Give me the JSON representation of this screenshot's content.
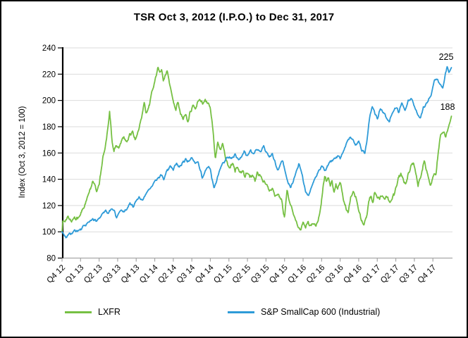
{
  "colors": {
    "lxfr_green": "#76C043",
    "sp600_blue": "#2E9BD8",
    "grid": "#DBDBDB",
    "axis_y": "#000000",
    "axis_x": "#A6A6A6",
    "text": "#000000"
  },
  "legend": {
    "items": [
      {
        "label": "LXFR",
        "color": "#76C043"
      },
      {
        "label": "S&P SmallCap 600 (Industrial)",
        "color": "#2E9BD8"
      }
    ]
  },
  "chart_data": {
    "type": "line",
    "title": "TSR Oct 3, 2012 (I.P.O.) to Dec 31, 2017",
    "xlabel": "",
    "ylabel": "Index (Oct 3, 2012 = 100)",
    "ylim": [
      80,
      240
    ],
    "yticks": [
      80,
      100,
      120,
      140,
      160,
      180,
      200,
      220,
      240
    ],
    "grid": "horizontal",
    "legend_position": "bottom",
    "x_unit": "months since Oct 3, 2012 (0 = IPO Oct 3 2012, 63 = Dec 31 2017)",
    "x_range": [
      0,
      63
    ],
    "xtick_labels": [
      "Q4 12",
      "Q1 13",
      "Q2 13",
      "Q3 13",
      "Q4 13",
      "Q1 14",
      "Q2 14",
      "Q3 14",
      "Q4 14",
      "Q1 15",
      "Q2 15",
      "Q3 15",
      "Q4 15",
      "Q1 16",
      "Q2 16",
      "Q3 16",
      "Q4 16",
      "Q1 17",
      "Q2 17",
      "Q3 17",
      "Q4 17"
    ],
    "end_labels": [
      {
        "series": "S&P SmallCap 600 (Industrial)",
        "value": 225
      },
      {
        "series": "LXFR",
        "value": 188
      }
    ],
    "series": [
      {
        "name": "LXFR",
        "color": "#76C043",
        "points": [
          [
            0,
            100
          ],
          [
            0.15,
            109
          ],
          [
            0.5,
            107
          ],
          [
            1,
            111
          ],
          [
            1.5,
            108
          ],
          [
            2,
            112
          ],
          [
            2.5,
            110
          ],
          [
            3,
            113
          ],
          [
            3.5,
            118
          ],
          [
            4,
            124
          ],
          [
            4.5,
            131
          ],
          [
            5,
            140
          ],
          [
            5.6,
            130
          ],
          [
            6,
            137
          ],
          [
            6.3,
            146
          ],
          [
            6.6,
            156
          ],
          [
            6.9,
            163
          ],
          [
            7.2,
            171
          ],
          [
            7.45,
            180
          ],
          [
            7.7,
            192
          ],
          [
            7.9,
            182
          ],
          [
            8.1,
            170
          ],
          [
            8.4,
            161
          ],
          [
            8.8,
            167
          ],
          [
            9.2,
            163
          ],
          [
            9.6,
            169
          ],
          [
            10,
            172
          ],
          [
            10.5,
            168
          ],
          [
            11,
            174
          ],
          [
            11.4,
            177
          ],
          [
            11.8,
            171
          ],
          [
            12.2,
            174
          ],
          [
            12.6,
            181
          ],
          [
            13,
            190
          ],
          [
            13.3,
            198
          ],
          [
            13.6,
            189
          ],
          [
            14,
            194
          ],
          [
            14.4,
            203
          ],
          [
            14.8,
            210
          ],
          [
            15.2,
            219
          ],
          [
            15.5,
            226
          ],
          [
            15.8,
            221
          ],
          [
            16.1,
            224
          ],
          [
            16.4,
            214
          ],
          [
            16.8,
            220
          ],
          [
            17,
            223
          ],
          [
            17.3,
            215
          ],
          [
            17.6,
            207
          ],
          [
            18,
            200
          ],
          [
            18.4,
            193
          ],
          [
            18.8,
            199
          ],
          [
            19.2,
            189
          ],
          [
            19.6,
            186
          ],
          [
            20,
            190
          ],
          [
            20.4,
            184
          ],
          [
            20.8,
            192
          ],
          [
            21.2,
            197
          ],
          [
            21.6,
            194
          ],
          [
            22,
            199
          ],
          [
            22.4,
            201
          ],
          [
            22.8,
            197
          ],
          [
            23.2,
            200
          ],
          [
            23.6,
            198
          ],
          [
            24,
            194
          ],
          [
            24.4,
            178
          ],
          [
            24.8,
            156
          ],
          [
            25.2,
            168
          ],
          [
            25.6,
            162
          ],
          [
            26,
            167
          ],
          [
            26.4,
            158
          ],
          [
            26.8,
            152
          ],
          [
            27.2,
            149
          ],
          [
            27.6,
            153
          ],
          [
            28,
            147
          ],
          [
            28.4,
            150
          ],
          [
            28.8,
            144
          ],
          [
            29.2,
            147
          ],
          [
            29.6,
            142
          ],
          [
            30,
            145
          ],
          [
            30.4,
            141
          ],
          [
            30.8,
            144
          ],
          [
            31.2,
            139
          ],
          [
            31.6,
            146
          ],
          [
            32,
            142
          ],
          [
            32.5,
            139
          ],
          [
            33,
            136
          ],
          [
            33.5,
            131
          ],
          [
            34,
            134
          ],
          [
            34.5,
            127
          ],
          [
            35,
            130
          ],
          [
            35.5,
            124
          ],
          [
            36,
            111
          ],
          [
            36.4,
            131
          ],
          [
            36.8,
            124
          ],
          [
            37.2,
            117
          ],
          [
            37.6,
            110
          ],
          [
            38,
            106
          ],
          [
            38.5,
            101
          ],
          [
            39,
            107
          ],
          [
            39.4,
            103
          ],
          [
            39.8,
            108
          ],
          [
            40.2,
            104
          ],
          [
            40.6,
            107
          ],
          [
            41,
            104
          ],
          [
            41.4,
            108
          ],
          [
            41.8,
            116
          ],
          [
            42.2,
            132
          ],
          [
            42.5,
            144
          ],
          [
            42.8,
            137
          ],
          [
            43.1,
            142
          ],
          [
            43.4,
            134
          ],
          [
            43.7,
            139
          ],
          [
            44,
            131
          ],
          [
            44.3,
            137
          ],
          [
            44.6,
            132
          ],
          [
            45,
            138
          ],
          [
            45.4,
            128
          ],
          [
            46,
            117
          ],
          [
            46.3,
            114
          ],
          [
            46.7,
            126
          ],
          [
            47.1,
            131
          ],
          [
            47.5,
            126
          ],
          [
            48,
            117
          ],
          [
            48.4,
            108
          ],
          [
            48.8,
            106
          ],
          [
            49.2,
            110
          ],
          [
            49.6,
            122
          ],
          [
            50,
            128
          ],
          [
            50.3,
            121
          ],
          [
            50.6,
            131
          ],
          [
            51,
            127
          ],
          [
            51.4,
            125
          ],
          [
            51.8,
            128
          ],
          [
            52.2,
            124
          ],
          [
            52.6,
            127
          ],
          [
            53,
            124
          ],
          [
            53.4,
            126
          ],
          [
            54,
            133
          ],
          [
            54.5,
            142
          ],
          [
            54.8,
            145
          ],
          [
            55.2,
            139
          ],
          [
            55.6,
            136
          ],
          [
            56,
            143
          ],
          [
            56.4,
            149
          ],
          [
            56.9,
            153
          ],
          [
            57.3,
            143
          ],
          [
            57.6,
            136
          ],
          [
            58,
            141
          ],
          [
            58.3,
            147
          ],
          [
            58.6,
            154
          ],
          [
            59,
            147
          ],
          [
            59.3,
            142
          ],
          [
            59.6,
            134
          ],
          [
            59.9,
            140
          ],
          [
            60.2,
            146
          ],
          [
            60.5,
            143
          ],
          [
            60.9,
            162
          ],
          [
            61.2,
            172
          ],
          [
            61.5,
            174
          ],
          [
            61.8,
            176
          ],
          [
            62.1,
            173
          ],
          [
            62.4,
            177
          ],
          [
            62.7,
            182
          ],
          [
            63,
            188
          ]
        ]
      },
      {
        "name": "S&P SmallCap 600 (Industrial)",
        "color": "#2E9BD8",
        "points": [
          [
            0,
            100
          ],
          [
            0.4,
            97
          ],
          [
            0.8,
            96
          ],
          [
            1.2,
            99
          ],
          [
            1.6,
            98
          ],
          [
            2,
            101
          ],
          [
            2.5,
            100
          ],
          [
            3,
            102
          ],
          [
            3.5,
            104
          ],
          [
            4,
            106
          ],
          [
            4.5,
            108
          ],
          [
            5,
            110
          ],
          [
            5.5,
            108
          ],
          [
            6,
            111
          ],
          [
            6.5,
            113
          ],
          [
            7,
            116
          ],
          [
            7.5,
            114
          ],
          [
            8,
            118
          ],
          [
            8.4,
            116
          ],
          [
            8.8,
            110
          ],
          [
            9.2,
            114
          ],
          [
            9.6,
            117
          ],
          [
            10,
            115
          ],
          [
            10.5,
            118
          ],
          [
            11,
            121
          ],
          [
            11.5,
            119
          ],
          [
            12,
            123
          ],
          [
            12.5,
            126
          ],
          [
            13,
            124
          ],
          [
            13.5,
            128
          ],
          [
            14,
            131
          ],
          [
            14.5,
            134
          ],
          [
            15,
            138
          ],
          [
            15.5,
            141
          ],
          [
            16,
            143
          ],
          [
            16.5,
            140
          ],
          [
            17,
            147
          ],
          [
            17.5,
            150
          ],
          [
            18,
            148
          ],
          [
            18.5,
            152
          ],
          [
            19,
            149
          ],
          [
            19.5,
            153
          ],
          [
            20,
            155
          ],
          [
            20.5,
            153
          ],
          [
            21,
            156
          ],
          [
            21.5,
            152
          ],
          [
            22,
            154
          ],
          [
            22.7,
            141
          ],
          [
            23.2,
            147
          ],
          [
            23.6,
            150
          ],
          [
            24,
            147
          ],
          [
            24.6,
            133
          ],
          [
            25,
            138
          ],
          [
            25.5,
            147
          ],
          [
            26,
            152
          ],
          [
            26.5,
            155
          ],
          [
            27,
            158
          ],
          [
            27.5,
            156
          ],
          [
            28,
            159
          ],
          [
            28.5,
            155
          ],
          [
            29,
            158
          ],
          [
            29.5,
            161
          ],
          [
            30,
            157
          ],
          [
            30.5,
            162
          ],
          [
            31,
            159
          ],
          [
            31.5,
            163
          ],
          [
            32,
            160
          ],
          [
            32.6,
            165
          ],
          [
            33,
            161
          ],
          [
            33.5,
            157
          ],
          [
            34,
            160
          ],
          [
            34.5,
            152
          ],
          [
            35,
            147
          ],
          [
            35.6,
            155
          ],
          [
            36,
            148
          ],
          [
            36.5,
            138
          ],
          [
            37,
            133
          ],
          [
            37.5,
            140
          ],
          [
            38,
            147
          ],
          [
            38.3,
            152
          ],
          [
            38.7,
            146
          ],
          [
            39.4,
            131
          ],
          [
            39.9,
            128
          ],
          [
            40.4,
            135
          ],
          [
            41,
            141
          ],
          [
            41.5,
            146
          ],
          [
            42,
            150
          ],
          [
            42.6,
            147
          ],
          [
            43.3,
            153
          ],
          [
            44,
            155
          ],
          [
            44.6,
            158
          ],
          [
            45,
            156
          ],
          [
            45.5,
            161
          ],
          [
            46,
            167
          ],
          [
            46.6,
            172
          ],
          [
            47,
            170
          ],
          [
            47.5,
            166
          ],
          [
            48,
            169
          ],
          [
            48.5,
            162
          ],
          [
            49,
            160
          ],
          [
            49.3,
            168
          ],
          [
            49.8,
            189
          ],
          [
            50.2,
            196
          ],
          [
            50.6,
            191
          ],
          [
            51,
            186
          ],
          [
            51.5,
            194
          ],
          [
            52,
            190
          ],
          [
            52.5,
            187
          ],
          [
            53,
            184
          ],
          [
            53.5,
            191
          ],
          [
            54,
            195
          ],
          [
            54.5,
            191
          ],
          [
            55,
            198
          ],
          [
            55.5,
            193
          ],
          [
            56,
            199
          ],
          [
            56.5,
            201
          ],
          [
            57,
            196
          ],
          [
            57.5,
            190
          ],
          [
            58,
            187
          ],
          [
            58.5,
            195
          ],
          [
            59,
            198
          ],
          [
            59.4,
            201
          ],
          [
            59.7,
            204
          ],
          [
            60,
            210
          ],
          [
            60.3,
            215
          ],
          [
            60.7,
            217
          ],
          [
            61,
            214
          ],
          [
            61.3,
            212
          ],
          [
            61.6,
            210
          ],
          [
            62,
            219
          ],
          [
            62.3,
            226
          ],
          [
            62.6,
            221
          ],
          [
            63,
            225
          ]
        ]
      }
    ]
  }
}
